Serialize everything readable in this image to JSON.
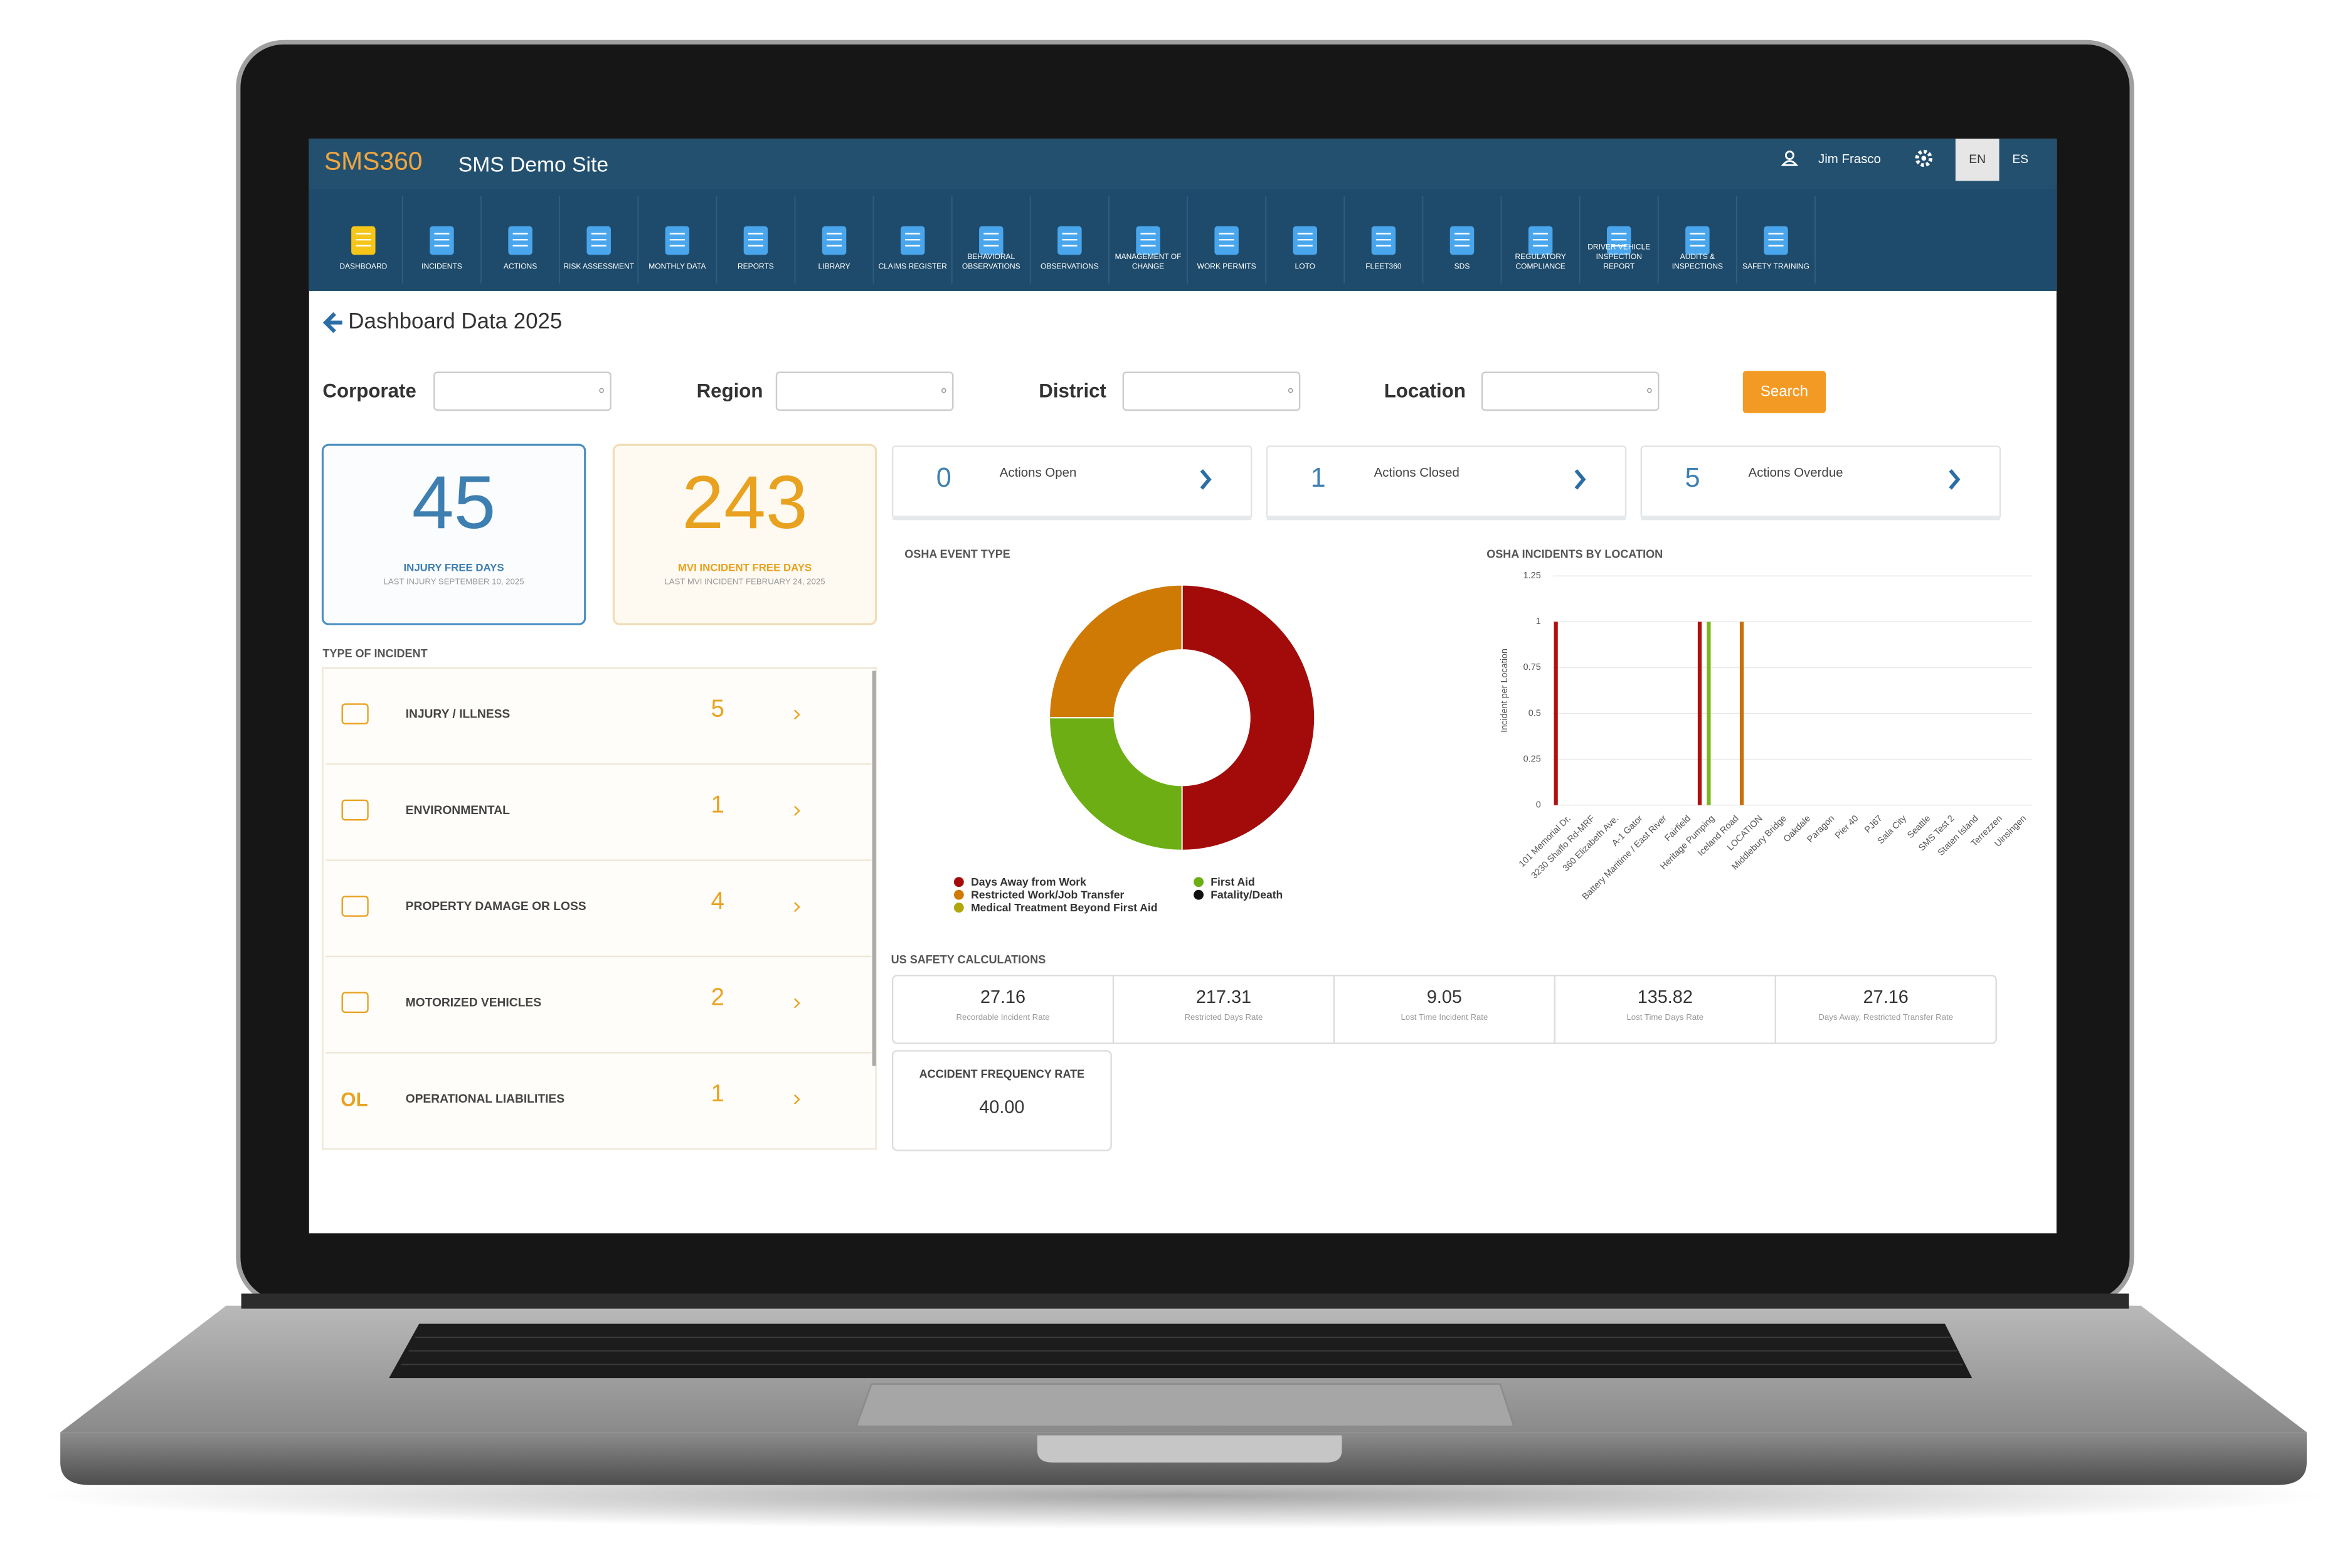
{
  "header": {
    "logo": "SMS360",
    "site": "SMS Demo Site",
    "user": "Jim Frasco",
    "languages": [
      "EN",
      "ES"
    ]
  },
  "nav": [
    [
      "DASHBOARD"
    ],
    [
      "INCIDENTS"
    ],
    [
      "ACTIONS"
    ],
    [
      "RISK ASSESSMENT"
    ],
    [
      "MONTHLY DATA"
    ],
    [
      "REPORTS"
    ],
    [
      "LIBRARY"
    ],
    [
      "CLAIMS REGISTER"
    ],
    [
      "BEHAVIORAL",
      "OBSERVATIONS"
    ],
    [
      "OBSERVATIONS"
    ],
    [
      "MANAGEMENT OF",
      "CHANGE"
    ],
    [
      "WORK PERMITS"
    ],
    [
      "LOTO"
    ],
    [
      "FLEET360"
    ],
    [
      "SDS"
    ],
    [
      "REGULATORY",
      "COMPLIANCE"
    ],
    [
      "DRIVER VEHICLE",
      "INSPECTION",
      "REPORT"
    ],
    [
      "AUDITS &",
      "INSPECTIONS"
    ],
    [
      "SAFETY TRAINING"
    ]
  ],
  "page_title": "Dashboard Data 2025",
  "filters": [
    "Corporate",
    "Region",
    "District",
    "Location"
  ],
  "search": "Search",
  "stat_cards": [
    {
      "value": 45,
      "label": "INJURY FREE DAYS",
      "note": "LAST INJURY SEPTEMBER 10, 2025"
    },
    {
      "value": 243,
      "label": "MVI INCIDENT FREE DAYS",
      "note": "LAST MVI INCIDENT FEBRUARY 24, 2025"
    }
  ],
  "actions": [
    {
      "value": 0,
      "label": "Actions Open"
    },
    {
      "value": 1,
      "label": "Actions Closed"
    },
    {
      "value": 5,
      "label": "Actions Overdue"
    }
  ],
  "incident_types": {
    "title": "TYPE OF INCIDENT",
    "rows": [
      {
        "label": "INJURY / ILLNESS",
        "value": 5
      },
      {
        "label": "ENVIRONMENTAL",
        "value": 1
      },
      {
        "label": "PROPERTY DAMAGE OR LOSS",
        "value": 4
      },
      {
        "label": "MOTORIZED VEHICLES",
        "value": 2
      },
      {
        "label": "OPERATIONAL LIABILITIES",
        "value": 1,
        "icon_text": "OL"
      }
    ]
  },
  "safety": {
    "title": "US SAFETY CALCULATIONS",
    "rates": [
      {
        "value": "27.16",
        "label": "Recordable Incident Rate"
      },
      {
        "value": "217.31",
        "label": "Restricted Days Rate"
      },
      {
        "value": "9.05",
        "label": "Lost Time Incident Rate"
      },
      {
        "value": "135.82",
        "label": "Lost Time Days Rate"
      },
      {
        "value": "27.16",
        "label": "Days Away, Restricted Transfer Rate"
      }
    ],
    "accident": {
      "label": "ACCIDENT FREQUENCY RATE",
      "value": "40.00"
    }
  },
  "chart_data": [
    {
      "type": "donut",
      "title": "OSHA EVENT TYPE",
      "categories": [
        "Days Away from Work",
        "First Aid",
        "Restricted Work/Job Transfer",
        "Fatality/Death",
        "Medical Treatment Beyond First Aid"
      ],
      "values": [
        2,
        1,
        1,
        0,
        0
      ],
      "colors": [
        "#a30b0b",
        "#6cae14",
        "#d07a06",
        "#111111",
        "#b3a60c"
      ]
    },
    {
      "type": "bar",
      "title": "OSHA INCIDENTS BY LOCATION",
      "ylabel": "Incident per Location",
      "categories": [
        "101 Memorial Dr.",
        "3230 Shaffo Rd-MRF",
        "360 Elizabeth Ave.",
        "A-1 Gator",
        "Battery Maritime / East River",
        "Fairfield",
        "Heritage Pumping",
        "Iceland Road",
        "LOCATION",
        "Middlebury Bridge",
        "Oakdale",
        "Paragon",
        "Pier 40",
        "PJ67",
        "Sala City",
        "Seattle",
        "SMS Test 2",
        "Staten Island",
        "Terrezzen",
        "Uinsingen"
      ],
      "series": [
        {
          "color": "#b01010",
          "values": [
            1,
            0,
            0,
            0,
            0,
            0,
            1,
            0,
            0,
            0,
            0,
            0,
            0,
            0,
            0,
            0,
            0,
            0,
            0,
            0
          ]
        },
        {
          "color": "#7fb51c",
          "values": [
            0,
            0,
            0,
            0,
            0,
            0,
            1,
            0,
            0,
            0,
            0,
            0,
            0,
            0,
            0,
            0,
            0,
            0,
            0,
            0
          ]
        },
        {
          "color": "#c8700c",
          "values": [
            0,
            0,
            0,
            0,
            0,
            0,
            0,
            1,
            0,
            0,
            0,
            0,
            0,
            0,
            0,
            0,
            0,
            0,
            0,
            0
          ]
        }
      ],
      "ylim": [
        0,
        1.25
      ],
      "yticks": [
        0,
        0.25,
        0.5,
        0.75,
        1,
        1.25
      ],
      "grid": true
    }
  ]
}
